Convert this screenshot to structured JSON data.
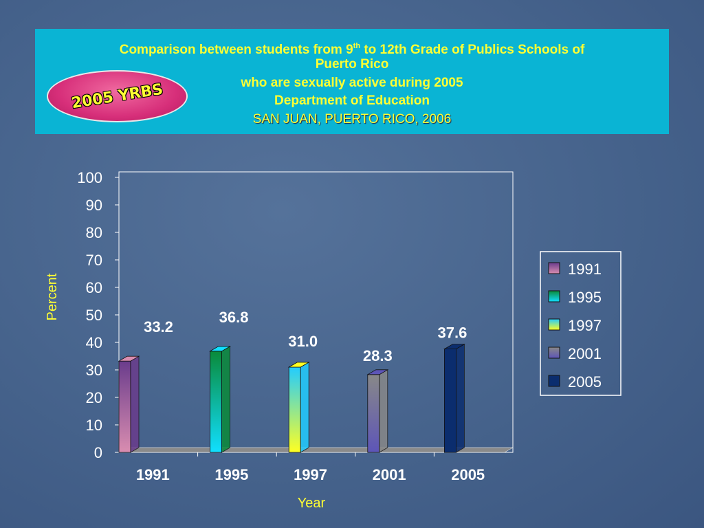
{
  "title": {
    "line1_pre": "Comparison between students from 9",
    "line1_sup": "th",
    "line1_post": " to 12th Grade of Publics Schools of",
    "line2": "Puerto Rico",
    "line3": "who are sexually active during 2005",
    "line4": "Department of Education",
    "line5": "SAN JUAN, PUERTO RICO, 2006"
  },
  "badge": {
    "text": "2005 YRBS"
  },
  "chart_data": {
    "type": "bar",
    "categories": [
      "1991",
      "1995",
      "1997",
      "2001",
      "2005"
    ],
    "values": [
      33.2,
      36.8,
      31.0,
      28.3,
      37.6
    ],
    "value_labels": [
      "33.2",
      "36.8",
      "31.0",
      "28.3",
      "37.6"
    ],
    "xlabel": "Year",
    "ylabel": "Percent",
    "ylim": [
      0,
      100
    ],
    "yticks": [
      "0",
      "10",
      "20",
      "30",
      "40",
      "50",
      "60",
      "70",
      "80",
      "90",
      "100"
    ],
    "legend": [
      "1991",
      "1995",
      "1997",
      "2001",
      "2005"
    ],
    "legend_position": "right",
    "style": "3d-bar",
    "colors": {
      "1991": [
        "#d98db0",
        "#6a3c8c"
      ],
      "1995": [
        "#11dfff",
        "#0a8a3a"
      ],
      "1997": [
        "#ffff22",
        "#22ccff"
      ],
      "2001": [
        "#5d55b8",
        "#888888"
      ],
      "2005": [
        "#0b2d6e",
        "#0b2d6e"
      ]
    }
  }
}
